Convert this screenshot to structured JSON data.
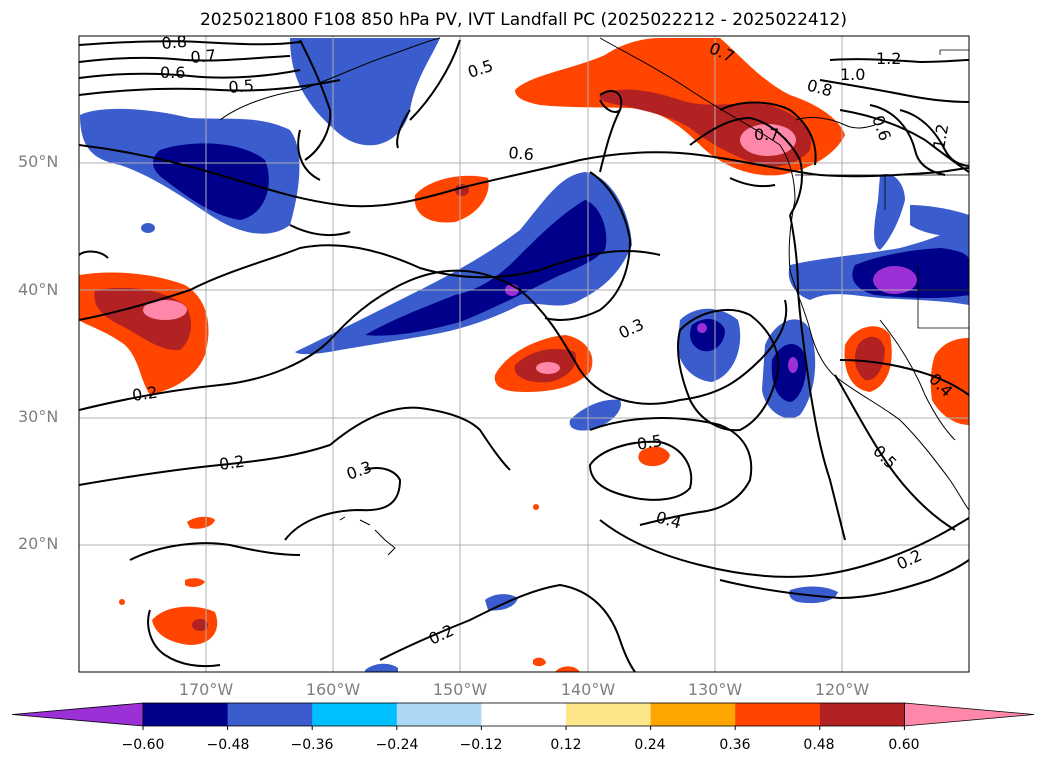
{
  "title": "2025021800 F108 850 hPa PV, IVT Landfall PC (2025022212 - 2025022412)",
  "lat_labels": [
    "50°N",
    "40°N",
    "30°N",
    "20°N"
  ],
  "lon_labels": [
    "170°W",
    "160°W",
    "150°W",
    "140°W",
    "130°W",
    "120°W"
  ],
  "colorbar": {
    "ticks": [
      "−0.60",
      "−0.48",
      "−0.36",
      "−0.24",
      "−0.12",
      "0.12",
      "0.24",
      "0.36",
      "0.48",
      "0.60"
    ],
    "colors": [
      "#9b30d6",
      "#00008b",
      "#3a5ccc",
      "#00bfff",
      "#add8f5",
      "#ffffff",
      "#fde68a",
      "#ffa500",
      "#ff4500",
      "#b22222",
      "#ff88aa"
    ]
  },
  "contour_labels": [
    {
      "text": "0.8"
    },
    {
      "text": "0.7"
    },
    {
      "text": "0.6"
    },
    {
      "text": "0.5"
    },
    {
      "text": "0.5"
    },
    {
      "text": "0.7"
    },
    {
      "text": "0.8"
    },
    {
      "text": "1.0"
    },
    {
      "text": "1.2"
    },
    {
      "text": "1.2"
    },
    {
      "text": "0.6"
    },
    {
      "text": "0.6"
    },
    {
      "text": "0.7"
    },
    {
      "text": "0.2"
    },
    {
      "text": "0.3"
    },
    {
      "text": "0.2"
    },
    {
      "text": "0.3"
    },
    {
      "text": "0.5"
    },
    {
      "text": "0.4"
    },
    {
      "text": "0.5"
    },
    {
      "text": "0.4"
    },
    {
      "text": "0.2"
    },
    {
      "text": "0.2"
    }
  ]
}
